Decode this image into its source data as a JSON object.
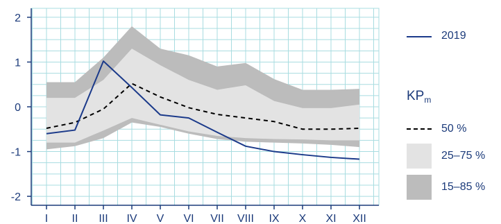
{
  "chart_data": {
    "type": "area",
    "categories": [
      "I",
      "II",
      "III",
      "IV",
      "V",
      "VI",
      "VII",
      "VIII",
      "IX",
      "X",
      "XI",
      "XII"
    ],
    "ylim": [
      -2.2,
      2.2
    ],
    "yticks": [
      2,
      1,
      0,
      -1,
      -2
    ],
    "ytick_labels": [
      "2",
      "1",
      "0",
      "-1",
      "-2"
    ],
    "grid": true,
    "legend_position": "right",
    "series": [
      {
        "name": "2019",
        "type": "line",
        "color": "#1b3a8a",
        "values": [
          -0.6,
          -0.52,
          1.02,
          0.43,
          -0.18,
          -0.25,
          -0.57,
          -0.88,
          -1.0,
          -1.07,
          -1.13,
          -1.17
        ]
      },
      {
        "name": "50 %",
        "type": "line",
        "dash": true,
        "color": "#000000",
        "values": [
          -0.48,
          -0.35,
          -0.05,
          0.52,
          0.22,
          -0.02,
          -0.17,
          -0.25,
          -0.33,
          -0.5,
          -0.5,
          -0.48
        ]
      },
      {
        "name": "25–75 %",
        "type": "band",
        "color": "#e3e3e3",
        "lower": [
          -0.8,
          -0.8,
          -0.53,
          -0.25,
          -0.4,
          -0.55,
          -0.65,
          -0.7,
          -0.72,
          -0.73,
          -0.75,
          -0.75
        ],
        "upper": [
          0.2,
          0.2,
          0.6,
          1.3,
          0.93,
          0.6,
          0.38,
          0.48,
          0.13,
          -0.03,
          -0.03,
          0.05
        ]
      },
      {
        "name": "15–85 %",
        "type": "band",
        "color": "#bcbcbc",
        "lower": [
          -0.95,
          -0.88,
          -0.7,
          -0.35,
          -0.45,
          -0.6,
          -0.72,
          -0.78,
          -0.8,
          -0.82,
          -0.85,
          -0.9
        ],
        "upper": [
          0.55,
          0.55,
          1.1,
          1.8,
          1.3,
          1.15,
          0.9,
          0.98,
          0.62,
          0.38,
          0.38,
          0.4
        ]
      }
    ]
  },
  "legend": {
    "line_label": "2019",
    "group_title": "KP",
    "group_title_sub": "m",
    "median_label": "50 %",
    "iqr_label": "25–75 %",
    "wide_label": "15–85 %"
  }
}
